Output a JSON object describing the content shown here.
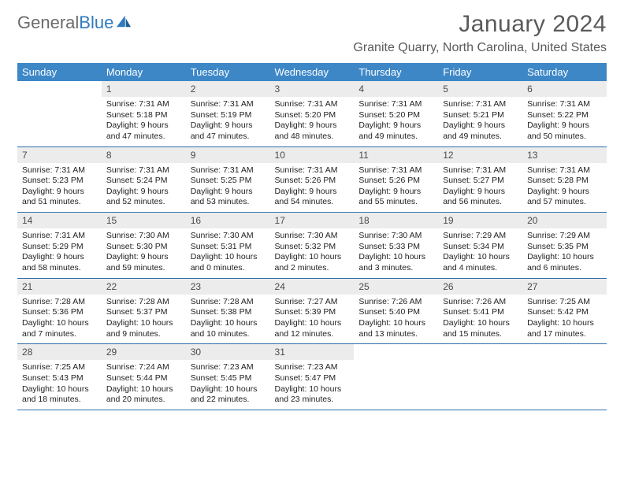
{
  "brand": {
    "part1": "General",
    "part2": "Blue",
    "logo_color": "#2f7bbf",
    "text_color": "#6b6b6b"
  },
  "title": "January 2024",
  "location": "Granite Quarry, North Carolina, United States",
  "theme": {
    "header_bg": "#3d87c7",
    "border_color": "#2f6fa8",
    "daynum_bg": "#ececec"
  },
  "weekdays": [
    "Sunday",
    "Monday",
    "Tuesday",
    "Wednesday",
    "Thursday",
    "Friday",
    "Saturday"
  ],
  "days": [
    {
      "n": "1",
      "sr": "Sunrise: 7:31 AM",
      "ss": "Sunset: 5:18 PM",
      "dl": "Daylight: 9 hours and 47 minutes."
    },
    {
      "n": "2",
      "sr": "Sunrise: 7:31 AM",
      "ss": "Sunset: 5:19 PM",
      "dl": "Daylight: 9 hours and 47 minutes."
    },
    {
      "n": "3",
      "sr": "Sunrise: 7:31 AM",
      "ss": "Sunset: 5:20 PM",
      "dl": "Daylight: 9 hours and 48 minutes."
    },
    {
      "n": "4",
      "sr": "Sunrise: 7:31 AM",
      "ss": "Sunset: 5:20 PM",
      "dl": "Daylight: 9 hours and 49 minutes."
    },
    {
      "n": "5",
      "sr": "Sunrise: 7:31 AM",
      "ss": "Sunset: 5:21 PM",
      "dl": "Daylight: 9 hours and 49 minutes."
    },
    {
      "n": "6",
      "sr": "Sunrise: 7:31 AM",
      "ss": "Sunset: 5:22 PM",
      "dl": "Daylight: 9 hours and 50 minutes."
    },
    {
      "n": "7",
      "sr": "Sunrise: 7:31 AM",
      "ss": "Sunset: 5:23 PM",
      "dl": "Daylight: 9 hours and 51 minutes."
    },
    {
      "n": "8",
      "sr": "Sunrise: 7:31 AM",
      "ss": "Sunset: 5:24 PM",
      "dl": "Daylight: 9 hours and 52 minutes."
    },
    {
      "n": "9",
      "sr": "Sunrise: 7:31 AM",
      "ss": "Sunset: 5:25 PM",
      "dl": "Daylight: 9 hours and 53 minutes."
    },
    {
      "n": "10",
      "sr": "Sunrise: 7:31 AM",
      "ss": "Sunset: 5:26 PM",
      "dl": "Daylight: 9 hours and 54 minutes."
    },
    {
      "n": "11",
      "sr": "Sunrise: 7:31 AM",
      "ss": "Sunset: 5:26 PM",
      "dl": "Daylight: 9 hours and 55 minutes."
    },
    {
      "n": "12",
      "sr": "Sunrise: 7:31 AM",
      "ss": "Sunset: 5:27 PM",
      "dl": "Daylight: 9 hours and 56 minutes."
    },
    {
      "n": "13",
      "sr": "Sunrise: 7:31 AM",
      "ss": "Sunset: 5:28 PM",
      "dl": "Daylight: 9 hours and 57 minutes."
    },
    {
      "n": "14",
      "sr": "Sunrise: 7:31 AM",
      "ss": "Sunset: 5:29 PM",
      "dl": "Daylight: 9 hours and 58 minutes."
    },
    {
      "n": "15",
      "sr": "Sunrise: 7:30 AM",
      "ss": "Sunset: 5:30 PM",
      "dl": "Daylight: 9 hours and 59 minutes."
    },
    {
      "n": "16",
      "sr": "Sunrise: 7:30 AM",
      "ss": "Sunset: 5:31 PM",
      "dl": "Daylight: 10 hours and 0 minutes."
    },
    {
      "n": "17",
      "sr": "Sunrise: 7:30 AM",
      "ss": "Sunset: 5:32 PM",
      "dl": "Daylight: 10 hours and 2 minutes."
    },
    {
      "n": "18",
      "sr": "Sunrise: 7:30 AM",
      "ss": "Sunset: 5:33 PM",
      "dl": "Daylight: 10 hours and 3 minutes."
    },
    {
      "n": "19",
      "sr": "Sunrise: 7:29 AM",
      "ss": "Sunset: 5:34 PM",
      "dl": "Daylight: 10 hours and 4 minutes."
    },
    {
      "n": "20",
      "sr": "Sunrise: 7:29 AM",
      "ss": "Sunset: 5:35 PM",
      "dl": "Daylight: 10 hours and 6 minutes."
    },
    {
      "n": "21",
      "sr": "Sunrise: 7:28 AM",
      "ss": "Sunset: 5:36 PM",
      "dl": "Daylight: 10 hours and 7 minutes."
    },
    {
      "n": "22",
      "sr": "Sunrise: 7:28 AM",
      "ss": "Sunset: 5:37 PM",
      "dl": "Daylight: 10 hours and 9 minutes."
    },
    {
      "n": "23",
      "sr": "Sunrise: 7:28 AM",
      "ss": "Sunset: 5:38 PM",
      "dl": "Daylight: 10 hours and 10 minutes."
    },
    {
      "n": "24",
      "sr": "Sunrise: 7:27 AM",
      "ss": "Sunset: 5:39 PM",
      "dl": "Daylight: 10 hours and 12 minutes."
    },
    {
      "n": "25",
      "sr": "Sunrise: 7:26 AM",
      "ss": "Sunset: 5:40 PM",
      "dl": "Daylight: 10 hours and 13 minutes."
    },
    {
      "n": "26",
      "sr": "Sunrise: 7:26 AM",
      "ss": "Sunset: 5:41 PM",
      "dl": "Daylight: 10 hours and 15 minutes."
    },
    {
      "n": "27",
      "sr": "Sunrise: 7:25 AM",
      "ss": "Sunset: 5:42 PM",
      "dl": "Daylight: 10 hours and 17 minutes."
    },
    {
      "n": "28",
      "sr": "Sunrise: 7:25 AM",
      "ss": "Sunset: 5:43 PM",
      "dl": "Daylight: 10 hours and 18 minutes."
    },
    {
      "n": "29",
      "sr": "Sunrise: 7:24 AM",
      "ss": "Sunset: 5:44 PM",
      "dl": "Daylight: 10 hours and 20 minutes."
    },
    {
      "n": "30",
      "sr": "Sunrise: 7:23 AM",
      "ss": "Sunset: 5:45 PM",
      "dl": "Daylight: 10 hours and 22 minutes."
    },
    {
      "n": "31",
      "sr": "Sunrise: 7:23 AM",
      "ss": "Sunset: 5:47 PM",
      "dl": "Daylight: 10 hours and 23 minutes."
    }
  ],
  "layout": {
    "first_day_index": 1,
    "rows": 5,
    "cols": 7
  }
}
